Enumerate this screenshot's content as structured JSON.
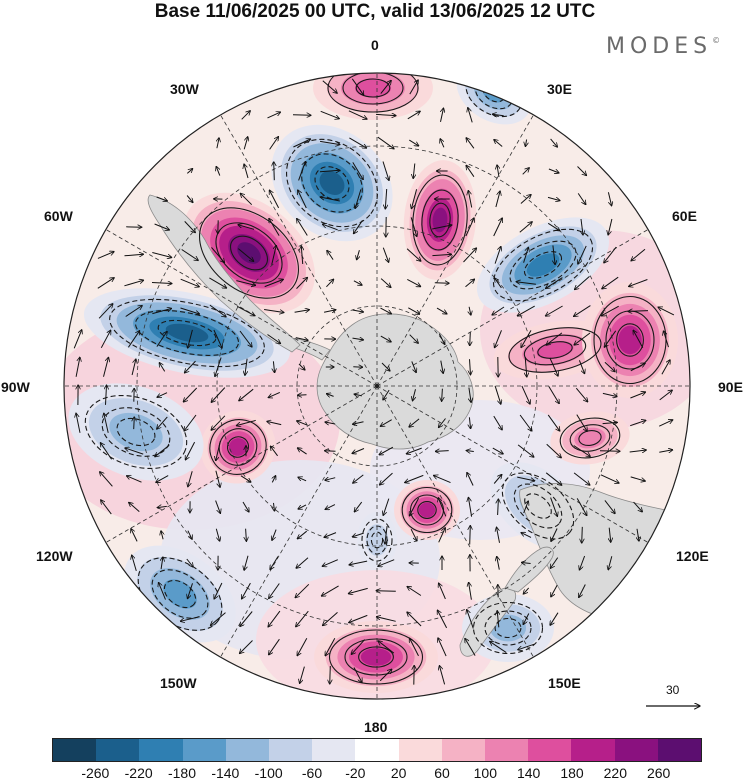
{
  "title": "Base 11/06/2025 00 UTC, valid 13/06/2025 12 UTC",
  "brand": "MODES",
  "brand_mark": "©",
  "longitude_labels": {
    "lon_0": "0",
    "lon_30e": "30E",
    "lon_60e": "60E",
    "lon_90e": "90E",
    "lon_120e": "120E",
    "lon_150e": "150E",
    "lon_180": "180",
    "lon_150w": "150W",
    "lon_120w": "120W",
    "lon_90w": "90W",
    "lon_60w": "60W",
    "lon_30w": "30W"
  },
  "reference_vector": {
    "label": "30"
  },
  "colorbar": {
    "colors": [
      "#14405e",
      "#1b5f8c",
      "#2f7fb2",
      "#5a9bc9",
      "#93b8db",
      "#c3d1e8",
      "#e5e7f2",
      "#ffffff",
      "#fadadb",
      "#f5b2c5",
      "#ec82b1",
      "#de4f9e",
      "#b61f8a",
      "#8a117f",
      "#5c0e70"
    ],
    "ticks": [
      "-260",
      "-220",
      "-180",
      "-140",
      "-100",
      "-60",
      "-20",
      "20",
      "60",
      "100",
      "140",
      "180",
      "220",
      "260"
    ]
  },
  "map": {
    "projection": "south polar stereographic",
    "ocean_background": "#f8ece8",
    "land_color": "#dadada",
    "anomaly_centers": [
      {
        "id": "a1",
        "sign": "neg",
        "value": -240
      },
      {
        "id": "a2",
        "sign": "pos",
        "value": 270
      },
      {
        "id": "a3",
        "sign": "neg",
        "value": -230
      },
      {
        "id": "a4",
        "sign": "pos",
        "value": 220
      },
      {
        "id": "a5",
        "sign": "pos",
        "value": 160
      },
      {
        "id": "a6",
        "sign": "neg",
        "value": -200
      },
      {
        "id": "a7",
        "sign": "pos",
        "value": 170
      },
      {
        "id": "a8",
        "sign": "neg",
        "value": -140
      },
      {
        "id": "a9",
        "sign": "pos",
        "value": 180
      },
      {
        "id": "a10",
        "sign": "neg",
        "value": -110
      },
      {
        "id": "a11",
        "sign": "pos",
        "value": 190
      },
      {
        "id": "a12",
        "sign": "neg",
        "value": -130
      },
      {
        "id": "a13",
        "sign": "pos",
        "value": 200
      },
      {
        "id": "a14",
        "sign": "neg",
        "value": -150
      },
      {
        "id": "a15",
        "sign": "neg",
        "value": -120
      },
      {
        "id": "a16",
        "sign": "pos",
        "value": 200
      },
      {
        "id": "a17",
        "sign": "neg",
        "value": -80
      },
      {
        "id": "a18",
        "sign": "pos",
        "value": 120
      }
    ]
  }
}
